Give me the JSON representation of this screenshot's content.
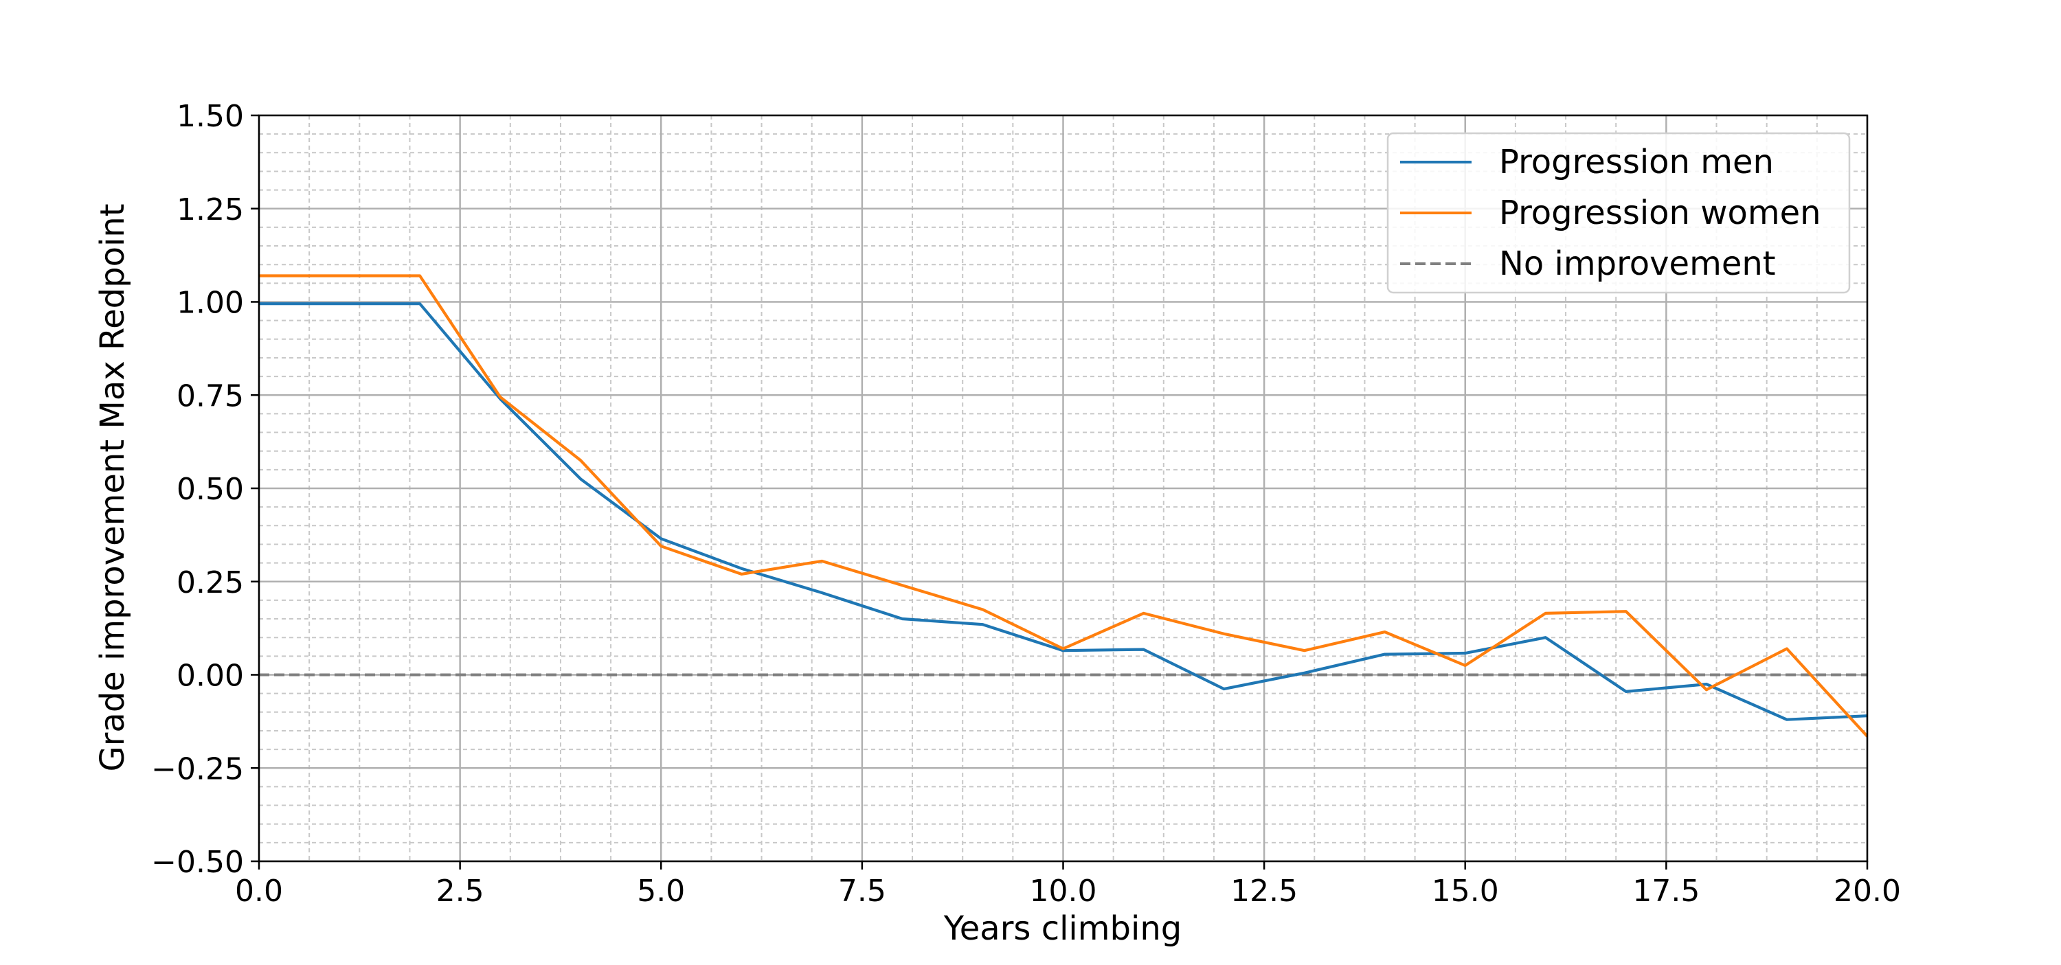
{
  "chart_data": {
    "type": "line",
    "xlabel": "Years climbing",
    "ylabel": "Grade improvement Max Redpoint",
    "xlim": [
      0,
      20
    ],
    "ylim": [
      -0.5,
      1.5
    ],
    "x_ticks": [
      0,
      2.5,
      5,
      7.5,
      10,
      12.5,
      15,
      17.5,
      20
    ],
    "x_tick_labels": [
      "0.0",
      "2.5",
      "5.0",
      "7.5",
      "10.0",
      "12.5",
      "15.0",
      "17.5",
      "20.0"
    ],
    "y_ticks": [
      -0.5,
      -0.25,
      0,
      0.25,
      0.5,
      0.75,
      1,
      1.25,
      1.5
    ],
    "y_tick_labels": [
      "−0.50",
      "−0.25",
      "0.00",
      "0.25",
      "0.50",
      "0.75",
      "1.00",
      "1.25",
      "1.50"
    ],
    "grid": true,
    "minor_grid": true,
    "legend_position": "top-right",
    "series": [
      {
        "name": "Progression men",
        "color": "#1f77b4",
        "style": "solid",
        "x": [
          0,
          2,
          3,
          4,
          5,
          6,
          7,
          8,
          9,
          10,
          11,
          12,
          13,
          14,
          15,
          16,
          17,
          18,
          19,
          20
        ],
        "values": [
          0.995,
          0.995,
          0.74,
          0.525,
          0.365,
          0.285,
          0.22,
          0.15,
          0.135,
          0.065,
          0.068,
          -0.038,
          0.005,
          0.055,
          0.058,
          0.1,
          -0.045,
          -0.025,
          -0.12,
          -0.11
        ]
      },
      {
        "name": "Progression women",
        "color": "#ff7f0e",
        "style": "solid",
        "x": [
          0,
          2,
          3,
          4,
          5,
          6,
          7,
          8,
          9,
          10,
          11,
          12,
          13,
          14,
          15,
          16,
          17,
          18,
          19,
          20
        ],
        "values": [
          1.07,
          1.07,
          0.745,
          0.575,
          0.345,
          0.27,
          0.305,
          0.24,
          0.175,
          0.07,
          0.165,
          0.11,
          0.065,
          0.115,
          0.025,
          0.165,
          0.17,
          -0.04,
          0.07,
          -0.165
        ]
      },
      {
        "name": "No improvement",
        "color": "#808080",
        "style": "dashed",
        "x": [
          0,
          20
        ],
        "values": [
          0,
          0
        ]
      }
    ]
  }
}
